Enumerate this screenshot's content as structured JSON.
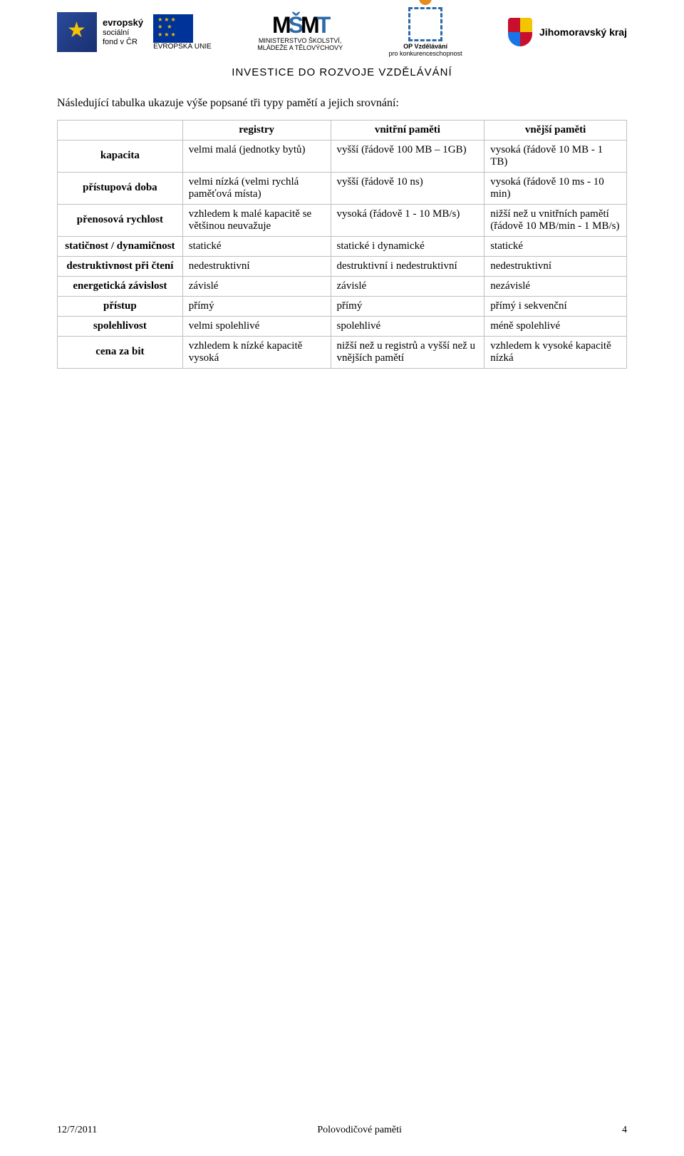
{
  "header": {
    "esf": {
      "bold": "evropský",
      "line2": "sociální",
      "line3": "fond v ČR"
    },
    "eu_label": "EVROPSKÁ UNIE",
    "msmt": {
      "logo_black": "M",
      "logo_blue": "Š",
      "logo_black2": "M",
      "logo_blue2": "T",
      "line1": "MINISTERSTVO ŠKOLSTVÍ,",
      "line2": "MLÁDEŽE A TĚLOVÝCHOVY"
    },
    "op": {
      "line1": "OP Vzdělávání",
      "line2": "pro konkurenceschopnost"
    },
    "jmk": "Jihomoravský kraj",
    "investice": "INVESTICE DO ROZVOJE VZDĚLÁVÁNÍ"
  },
  "intro": "Následující tabulka ukazuje výše popsané tři typy pamětí a jejich srovnání:",
  "table": {
    "columns": [
      "",
      "registry",
      "vnitřní paměti",
      "vnější paměti"
    ],
    "rows": [
      {
        "label": "kapacita",
        "cells": [
          "velmi malá (jednotky bytů)",
          "vyšší (řádově 100 MB – 1GB)",
          "vysoká (řádově 10 MB - 1 TB)"
        ]
      },
      {
        "label": "přístupová doba",
        "cells": [
          "velmi nízká (velmi rychlá paměťová místa)",
          "vyšší (řádově 10 ns)",
          "vysoká (řádově 10 ms - 10 min)"
        ]
      },
      {
        "label": "přenosová rychlost",
        "cells": [
          "vzhledem k malé kapacitě se většinou neuvažuje",
          "vysoká (řádově 1 - 10 MB/s)",
          "nižší než u vnitřních pamětí (řádově 10 MB/min - 1 MB/s)"
        ]
      },
      {
        "label": "statičnost / dynamičnost",
        "cells": [
          "statické",
          "statické i dynamické",
          "statické"
        ]
      },
      {
        "label": "destruktivnost při čtení",
        "cells": [
          "nedestruktivní",
          "destruktivní i nedestruktivní",
          "nedestruktivní"
        ]
      },
      {
        "label": "energetická závislost",
        "cells": [
          "závislé",
          "závislé",
          "nezávislé"
        ]
      },
      {
        "label": "přístup",
        "cells": [
          "přímý",
          "přímý",
          "přímý i sekvenční"
        ]
      },
      {
        "label": "spolehlivost",
        "cells": [
          "velmi spolehlivé",
          "spolehlivé",
          "méně spolehlivé"
        ]
      },
      {
        "label": "cena za bit",
        "cells": [
          "vzhledem k nízké kapacitě vysoká",
          "nižší než u registrů a vyšší než u vnějších pamětí",
          "vzhledem k vysoké kapacitě nízká"
        ]
      }
    ]
  },
  "footer": {
    "date": "12/7/2011",
    "title": "Polovodičové paměti",
    "page": "4"
  },
  "colors": {
    "border": "#bfbfbf",
    "text": "#000000",
    "eu_blue": "#003399",
    "star_yellow": "#f4c400"
  }
}
